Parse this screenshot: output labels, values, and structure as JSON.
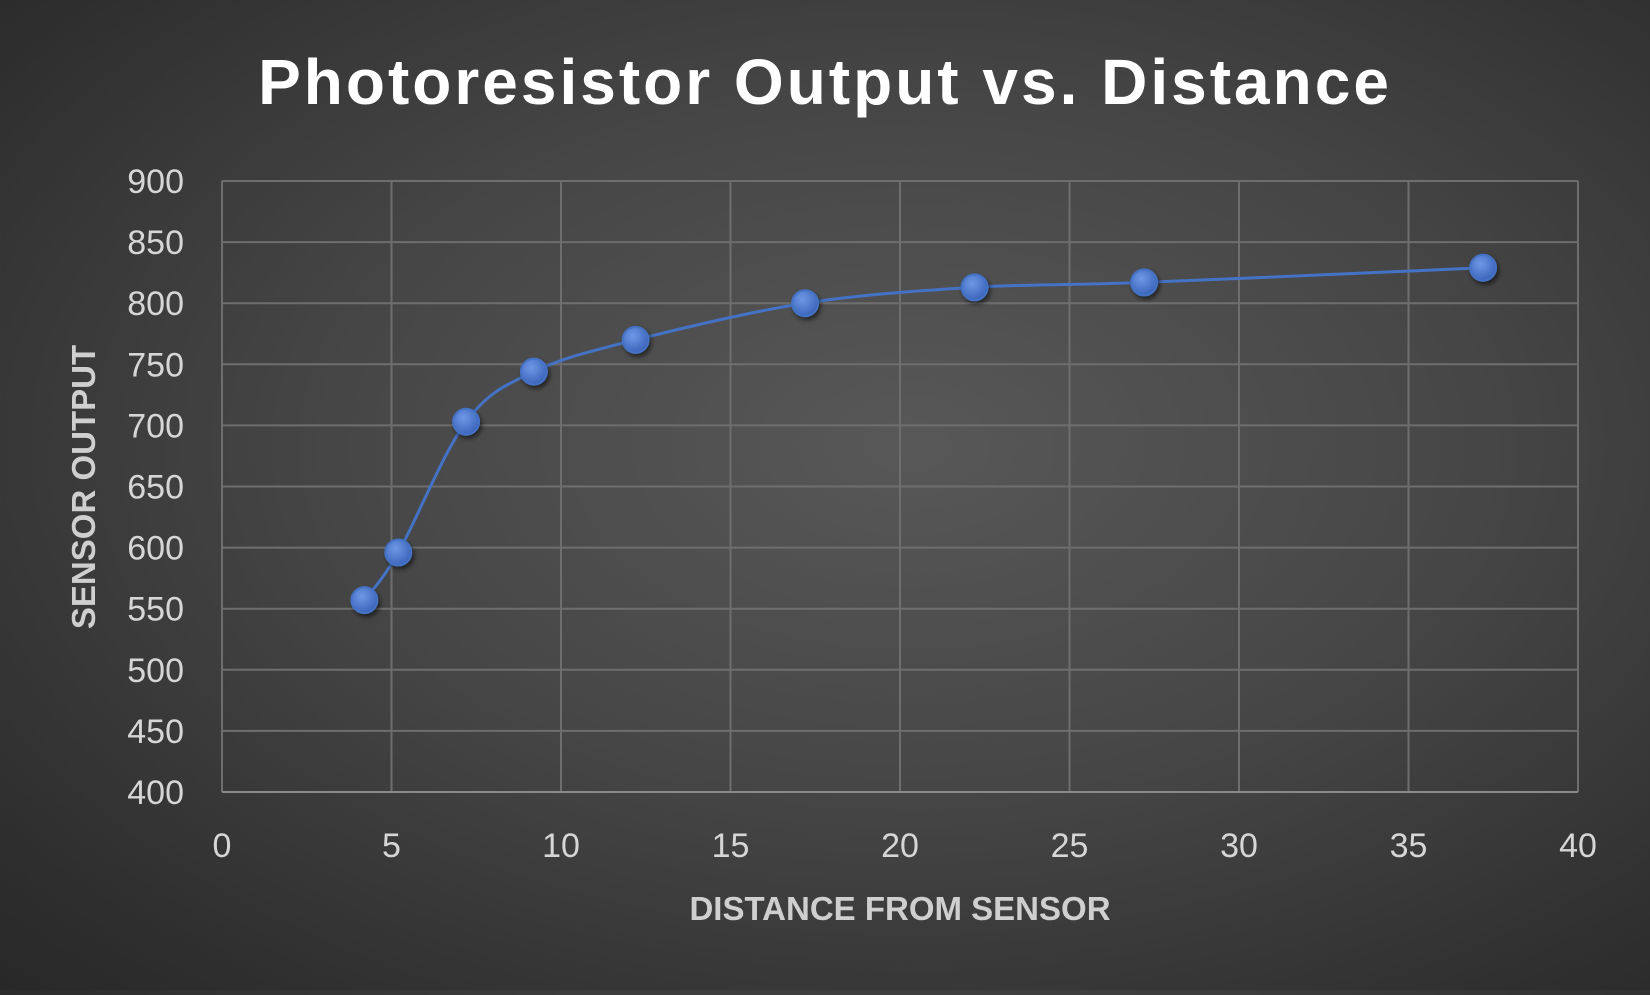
{
  "chart_data": {
    "type": "scatter",
    "title": "Photoresistor Output vs. Distance",
    "xlabel": "DISTANCE FROM SENSOR",
    "ylabel": "SENSOR OUTPUT",
    "xlim": [
      0,
      40
    ],
    "ylim": [
      400,
      900
    ],
    "xticks": [
      0,
      5,
      10,
      15,
      20,
      25,
      30,
      35,
      40
    ],
    "yticks": [
      400,
      450,
      500,
      550,
      600,
      650,
      700,
      750,
      800,
      850,
      900
    ],
    "grid": true,
    "line_style": "smooth",
    "series": [
      {
        "x": [
          4.2,
          5.2,
          7.2,
          9.2,
          12.2,
          17.2,
          22.2,
          27.2,
          37.2
        ],
        "y": [
          557,
          596,
          703,
          744,
          770,
          800,
          813,
          817,
          829
        ],
        "color": "#4472c4"
      }
    ]
  }
}
